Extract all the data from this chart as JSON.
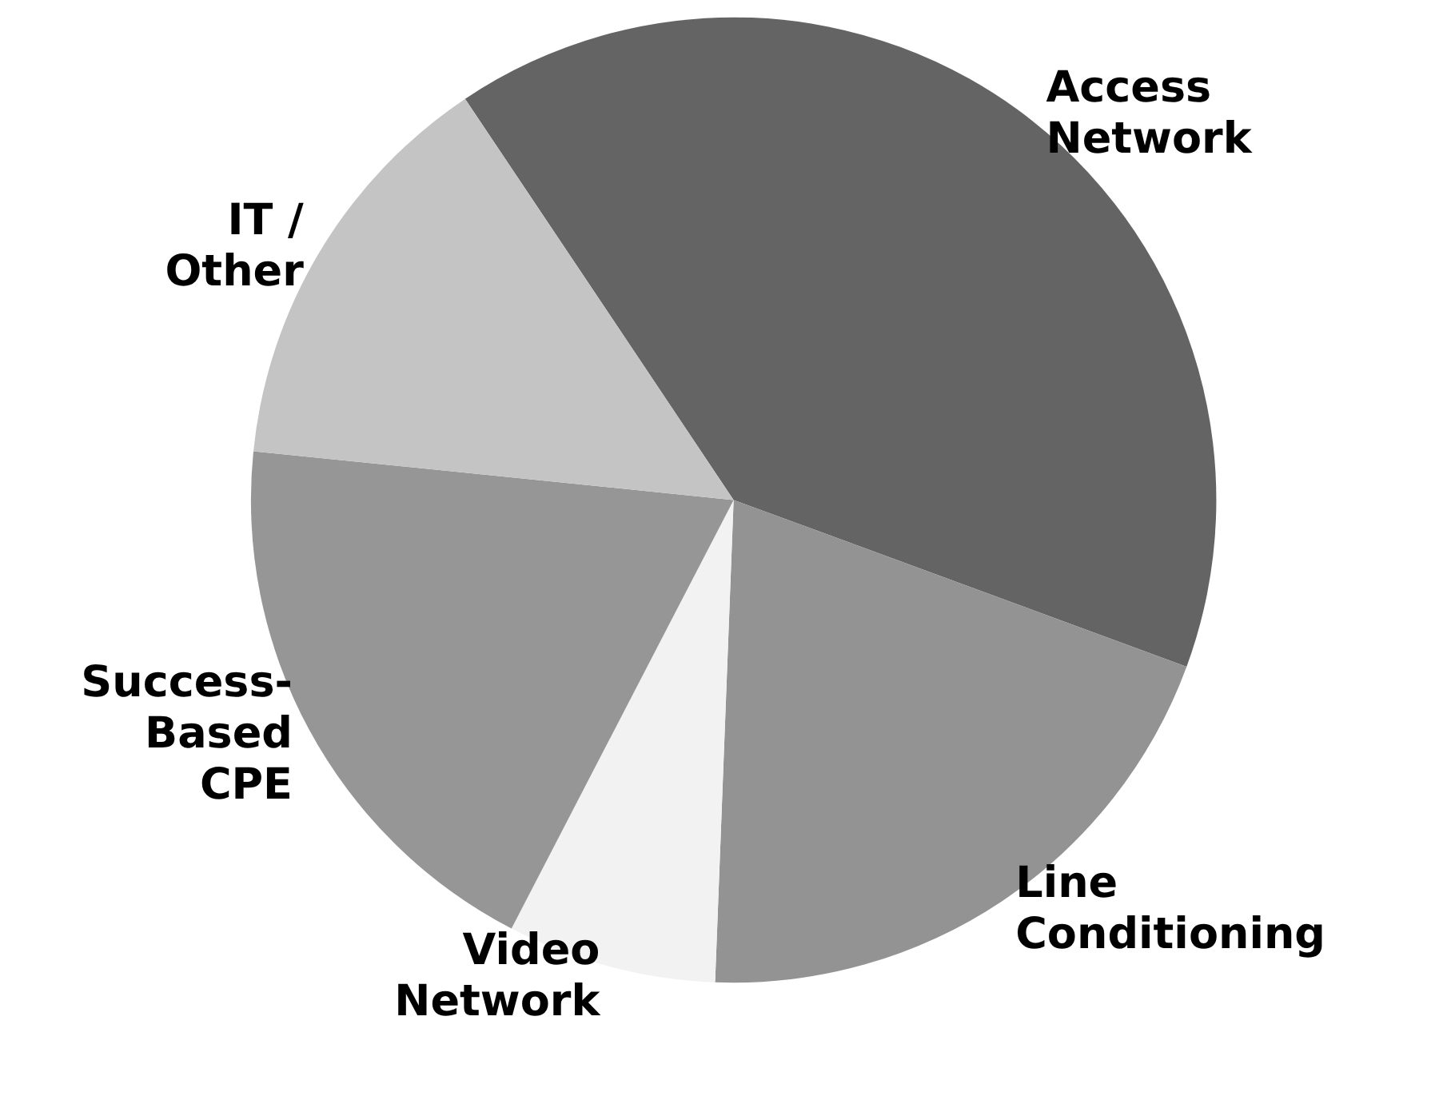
{
  "chart_data": {
    "type": "pie",
    "categories": [
      "Access\nNetwork",
      "Line\nConditioning",
      "Video\nNetwork",
      "Success-\nBased\nCPE",
      "IT /\nOther"
    ],
    "values": [
      40,
      20,
      7,
      19,
      14
    ],
    "colors": [
      "#646464",
      "#939393",
      "#f2f2f2",
      "#969696",
      "#c4c4c4"
    ],
    "legend": false
  }
}
